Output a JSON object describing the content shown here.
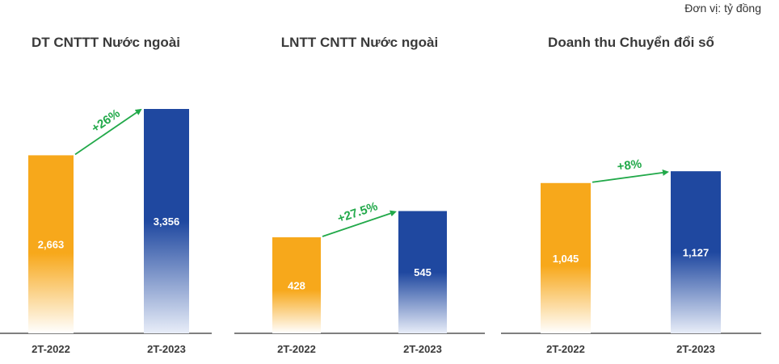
{
  "unit_label": "Đơn vị: tỷ đồng",
  "colors": {
    "bar_2022": "#F7A81B",
    "bar_2023": "#1F48A0",
    "growth": "#22A94A",
    "axis": "#555555"
  },
  "chart_data": [
    {
      "type": "bar",
      "title": "DT CNTTT Nước ngoài",
      "categories": [
        "2T-2022",
        "2T-2023"
      ],
      "values": [
        2663,
        3356
      ],
      "value_labels": [
        "2,663",
        "3,356"
      ],
      "growth_label": "+26%",
      "ylim": [
        0,
        3356
      ]
    },
    {
      "type": "bar",
      "title": "LNTT CNTT Nước ngoài",
      "categories": [
        "2T-2022",
        "2T-2023"
      ],
      "values": [
        428,
        545
      ],
      "value_labels": [
        "428",
        "545"
      ],
      "growth_label": "+27.5%",
      "ylim": [
        0,
        1000
      ]
    },
    {
      "type": "bar",
      "title": "Doanh thu Chuyển đổi số",
      "categories": [
        "2T-2022",
        "2T-2023"
      ],
      "values": [
        1045,
        1127
      ],
      "value_labels": [
        "1,045",
        "1,127"
      ],
      "growth_label": "+8%",
      "ylim": [
        0,
        1560
      ]
    }
  ]
}
